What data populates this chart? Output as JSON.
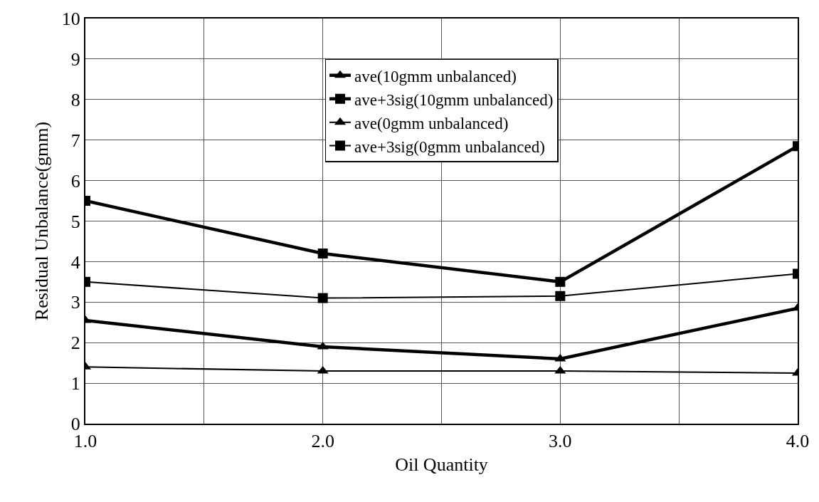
{
  "chart_data": {
    "type": "line",
    "xlabel": "Oil Quantity",
    "ylabel": "Residual Unbalance(gmm)",
    "x": [
      1,
      2,
      3,
      4
    ],
    "series": [
      {
        "name": "ave(10gmm unbalanced)",
        "color": "#000000",
        "marker": "triangle",
        "values": [
          2.55,
          1.9,
          1.6,
          2.85
        ]
      },
      {
        "name": "ave+3sig(10gmm unbalanced)",
        "color": "#000000",
        "marker": "square",
        "values": [
          5.5,
          4.2,
          3.5,
          6.85
        ]
      },
      {
        "name": "ave(0gmm unbalanced)",
        "color": "#000000",
        "marker": "triangle",
        "values": [
          1.4,
          1.3,
          1.3,
          1.25
        ]
      },
      {
        "name": "ave+3sig(0gmm unbalanced)",
        "color": "#000000",
        "marker": "square",
        "values": [
          3.5,
          3.1,
          3.15,
          3.7
        ]
      }
    ],
    "xlim": [
      1,
      4
    ],
    "xticks": [
      {
        "value": 1,
        "label": "1.0"
      },
      {
        "value": 1.5,
        "label": null
      },
      {
        "value": 2,
        "label": "2.0"
      },
      {
        "value": 2.5,
        "label": null
      },
      {
        "value": 3,
        "label": "3.0"
      },
      {
        "value": 3.5,
        "label": null
      },
      {
        "value": 4,
        "label": "4.0"
      }
    ],
    "ylim": [
      0,
      10
    ],
    "yticks": [
      0,
      1,
      2,
      3,
      4,
      5,
      6,
      7,
      8,
      9,
      10
    ],
    "grid": true,
    "legend": "top",
    "line_style": "solid"
  }
}
